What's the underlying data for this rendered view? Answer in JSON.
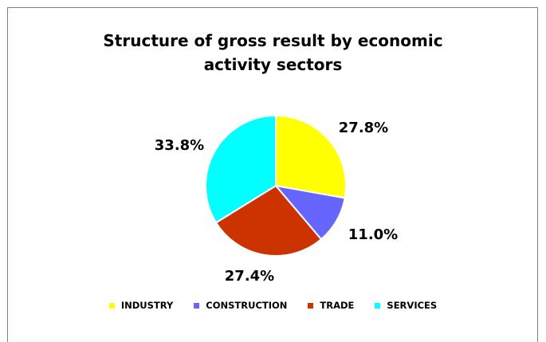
{
  "chart_data": {
    "type": "pie",
    "title_lines": [
      "Structure of gross result by economic",
      "activity sectors"
    ],
    "categories": [
      "INDUSTRY",
      "CONSTRUCTION",
      "TRADE",
      "SERVICES"
    ],
    "values": [
      27.8,
      11.0,
      27.4,
      33.8
    ],
    "labels": [
      "27.8%",
      "11.0%",
      "27.4%",
      "33.8%"
    ],
    "colors": [
      "#ffff00",
      "#6666ff",
      "#cc3300",
      "#00ffff"
    ],
    "legend_position": "bottom"
  }
}
